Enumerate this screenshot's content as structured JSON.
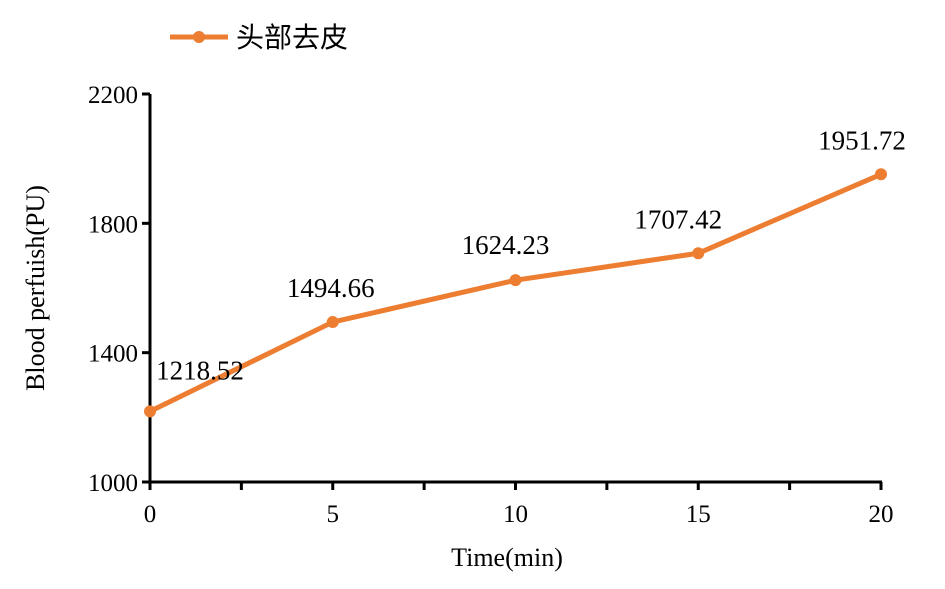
{
  "chart_data": {
    "type": "line",
    "title": "",
    "xlabel": "Time(min)",
    "ylabel": "Blood perfuish(PU)",
    "x": [
      0,
      5,
      10,
      15,
      20
    ],
    "xticks": [
      "0",
      "5",
      "10",
      "15",
      "20"
    ],
    "yticks": [
      "1000",
      "1400",
      "1800",
      "2200"
    ],
    "xlim": [
      0,
      20
    ],
    "ylim": [
      1000,
      2200
    ],
    "grid": false,
    "legend_position": "top-left",
    "series": [
      {
        "name": "头部去皮",
        "values": [
          1218.52,
          1494.66,
          1624.23,
          1707.42,
          1951.72
        ],
        "data_labels": [
          "1218.52",
          "1494.66",
          "1624.23",
          "1707.42",
          "1951.72"
        ],
        "color": "#ED7D31",
        "marker": "circle"
      }
    ]
  }
}
